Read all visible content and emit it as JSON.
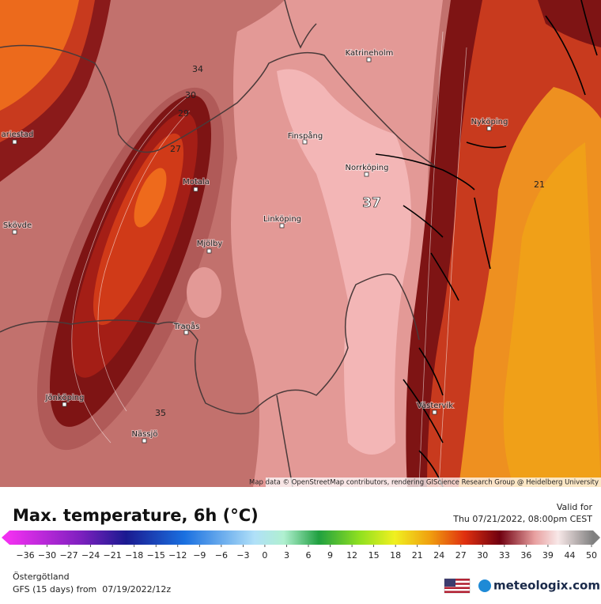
{
  "map": {
    "cities": [
      "Katrineholm",
      "Finspång",
      "Norrköping",
      "Nyköping",
      "Motala",
      "Linköping",
      "Mjölby",
      "Skövde",
      "ariestad",
      "Tranås",
      "Jönköping",
      "Nässjö",
      "Västervik"
    ],
    "contour_labels": [
      34,
      30,
      29,
      27,
      37,
      21,
      35
    ],
    "attribution": "Map data © OpenStreetMap contributors, rendering GIScience Research Group @ Heidelberg University"
  },
  "legend": {
    "title": "Max. temperature, 6h (°C)",
    "valid_label": "Valid for",
    "valid_time": "Thu 07/21/2022, 08:00pm CEST",
    "ticks": [
      {
        "value": -36,
        "label": "−36"
      },
      {
        "value": -30,
        "label": "−30"
      },
      {
        "value": -27,
        "label": "−27"
      },
      {
        "value": -24,
        "label": "−24"
      },
      {
        "value": -21,
        "label": "−21"
      },
      {
        "value": -18,
        "label": "−18"
      },
      {
        "value": -15,
        "label": "−15"
      },
      {
        "value": -12,
        "label": "−12"
      },
      {
        "value": -9,
        "label": "−9"
      },
      {
        "value": -6,
        "label": "−6"
      },
      {
        "value": -3,
        "label": "−3"
      },
      0,
      3,
      6,
      9,
      12,
      15,
      18,
      21,
      24,
      27,
      30,
      33,
      36,
      39,
      44,
      50
    ]
  },
  "footer": {
    "region": "Östergötland",
    "model": "GFS (15 days) from  07/19/2022/12z",
    "brand": "meteologix.com"
  }
}
